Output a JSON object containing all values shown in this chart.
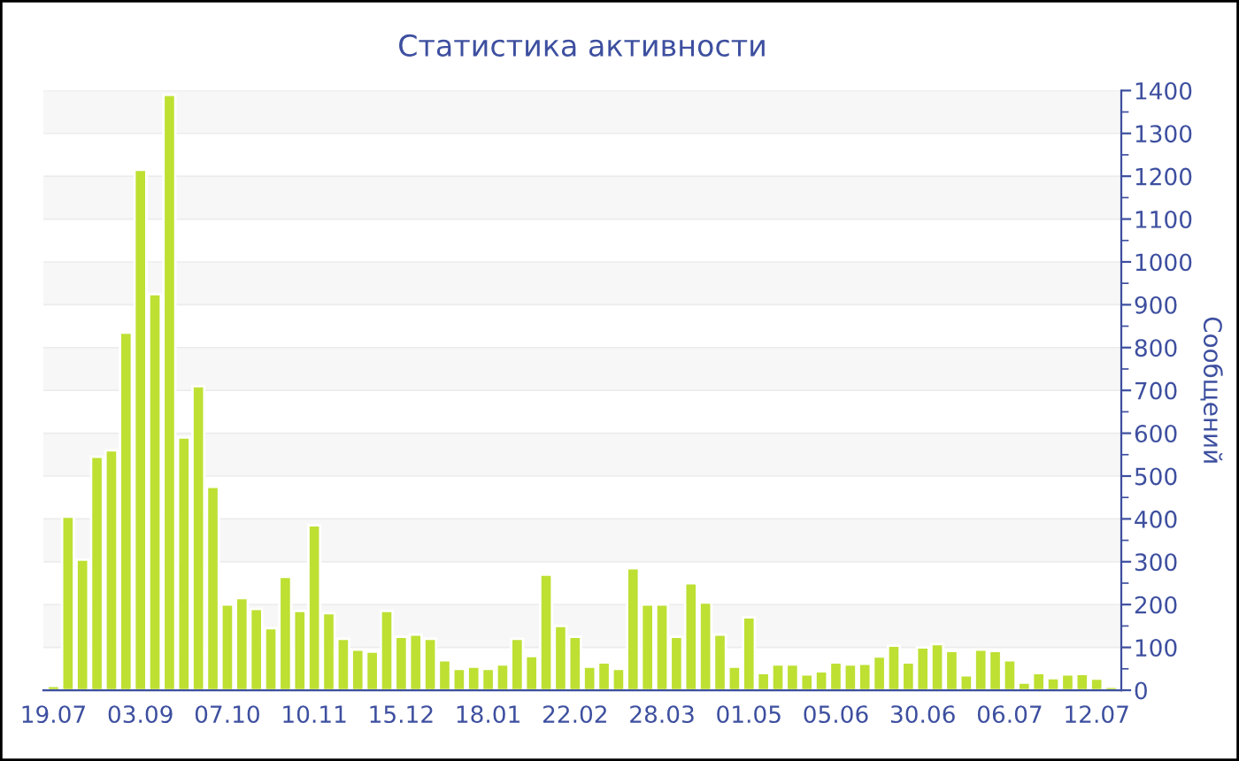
{
  "chart_data": {
    "type": "bar",
    "title": "Статистика активности",
    "ylabel": "Сообщений",
    "categories": [
      "19.07",
      null,
      null,
      null,
      null,
      null,
      "03.09",
      null,
      null,
      null,
      null,
      null,
      "07.10",
      null,
      null,
      null,
      null,
      null,
      "10.11",
      null,
      null,
      null,
      null,
      null,
      "15.12",
      null,
      null,
      null,
      null,
      null,
      "18.01",
      null,
      null,
      null,
      null,
      null,
      "22.02",
      null,
      null,
      null,
      null,
      null,
      "28.03",
      null,
      null,
      null,
      null,
      null,
      "01.05",
      null,
      null,
      null,
      null,
      null,
      "05.06",
      null,
      null,
      null,
      null,
      null,
      "30.06",
      null,
      null,
      null,
      null,
      null,
      "06.07",
      null,
      null,
      null,
      null,
      null,
      "12.07",
      null
    ],
    "values": [
      10,
      405,
      305,
      545,
      560,
      835,
      1215,
      925,
      1390,
      590,
      710,
      475,
      200,
      215,
      190,
      145,
      265,
      185,
      385,
      180,
      120,
      95,
      90,
      185,
      125,
      130,
      120,
      70,
      50,
      55,
      50,
      60,
      120,
      80,
      270,
      150,
      125,
      55,
      65,
      50,
      285,
      200,
      200,
      125,
      250,
      205,
      130,
      55,
      170,
      40,
      60,
      60,
      37,
      44,
      65,
      60,
      62,
      79,
      104,
      65,
      100,
      108,
      92,
      35,
      95,
      92,
      70,
      18,
      40,
      28,
      37,
      38,
      27,
      8
    ],
    "color": "#bde033",
    "ylim": [
      0,
      1400
    ],
    "yticks": [
      0,
      100,
      200,
      300,
      400,
      500,
      600,
      700,
      800,
      900,
      1000,
      1100,
      1200,
      1300,
      1400
    ],
    "grid": "y",
    "legend": false
  }
}
